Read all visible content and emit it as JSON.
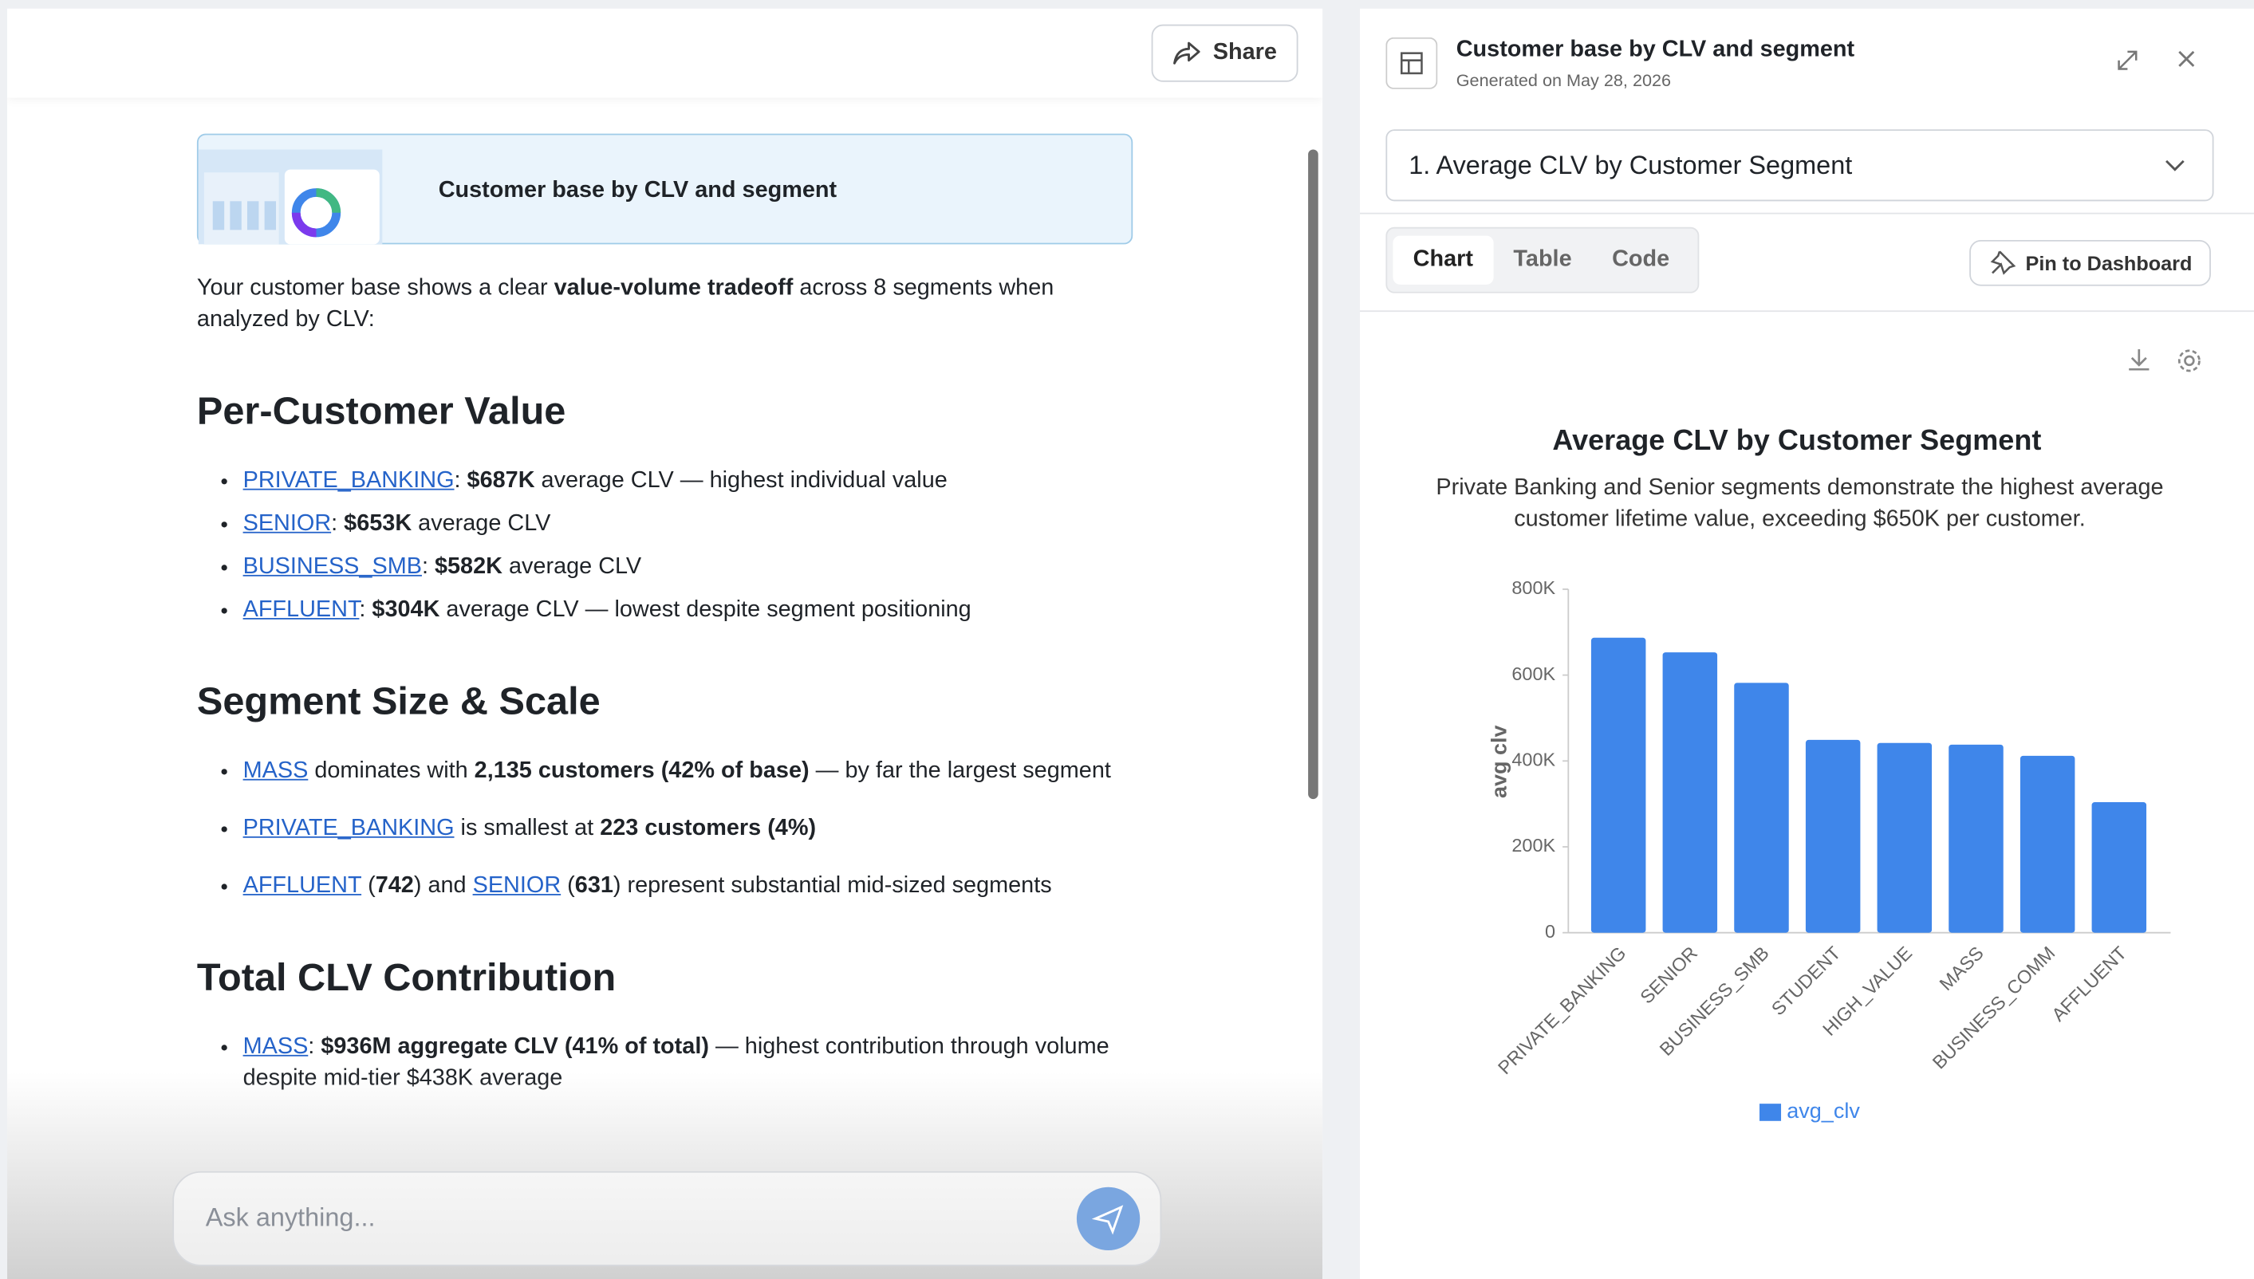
{
  "header": {
    "share": "Share"
  },
  "report_card": {
    "title": "Customer base by CLV and segment"
  },
  "intro": [
    "Your customer base shows a clear ",
    "value-volume tradeoff",
    " across 8 segments when analyzed by CLV:"
  ],
  "sections": [
    {
      "heading": "Per-Customer Value",
      "bullets": [
        [
          "PRIVATE_BANKING",
          ": ",
          "$687K",
          " average CLV — highest individual value"
        ],
        [
          "SENIOR",
          ": ",
          "$653K",
          " average CLV"
        ],
        [
          "BUSINESS_SMB",
          ": ",
          "$582K",
          " average CLV"
        ],
        [
          "AFFLUENT",
          ": ",
          "$304K",
          " average CLV — lowest despite segment positioning"
        ]
      ]
    },
    {
      "heading": "Segment Size & Scale",
      "bullets": [
        [
          "MASS",
          " dominates with ",
          "2,135 customers (42% of base)",
          " — by far the largest segment"
        ],
        [
          "PRIVATE_BANKING",
          " is smallest at ",
          "223 customers (4%)"
        ],
        [
          "AFFLUENT",
          " (",
          "742",
          ") and ",
          "SENIOR",
          " (",
          "631",
          ") represent substantial mid-sized segments"
        ]
      ]
    },
    {
      "heading": "Total CLV Contribution",
      "bullets": [
        [
          "MASS",
          ": ",
          "$936M aggregate CLV (41% of total)",
          " — highest contribution through volume despite mid-tier $438K average"
        ]
      ]
    }
  ],
  "input": {
    "placeholder": "Ask anything..."
  },
  "panel": {
    "title": "Customer base by CLV and segment",
    "generated": "Generated on May 28, 2026",
    "dropdown": "1. Average CLV by Customer Segment",
    "tabs": [
      "Chart",
      "Table",
      "Code"
    ],
    "pin": "Pin to Dashboard"
  },
  "chart_data": {
    "type": "bar",
    "title": "Average CLV by Customer Segment",
    "subtitle": "Private Banking and Senior segments demonstrate the highest average customer lifetime value, exceeding $650K per customer.",
    "y_label": "avg clv",
    "categories": [
      "PRIVATE_BANKING",
      "SENIOR",
      "BUSINESS_SMB",
      "STUDENT",
      "HIGH_VALUE",
      "MASS",
      "BUSINESS_COMM",
      "AFFLUENT"
    ],
    "series": [
      {
        "name": "avg_clv",
        "color": "#3f86ea",
        "values": [
          687000,
          653000,
          582000,
          449000,
          442000,
          438000,
          412000,
          304000
        ]
      }
    ],
    "ylim": [
      0,
      800000
    ],
    "yticks": [
      0,
      {
        "value": 200000,
        "label": "200K"
      },
      {
        "value": 400000,
        "label": "400K"
      },
      {
        "value": 600000,
        "label": "600K"
      },
      {
        "value": 800000,
        "label": "800K"
      }
    ],
    "grid": false
  }
}
